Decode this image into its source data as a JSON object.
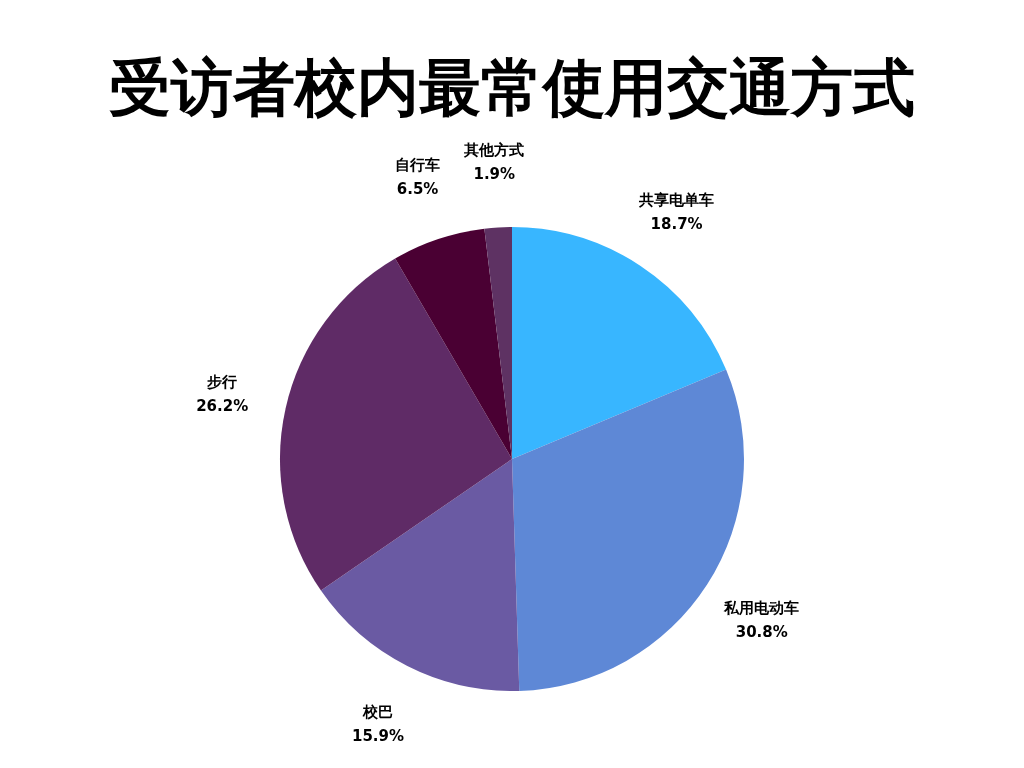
{
  "chart_data": {
    "type": "pie",
    "title": "受访者校内最常使用交通方式",
    "categories": [
      "共享电单车",
      "私用电动车",
      "校巴",
      "步行",
      "自行车",
      "其他方式"
    ],
    "values": [
      18.7,
      30.8,
      15.9,
      26.2,
      6.5,
      1.9
    ],
    "value_labels": [
      "18.7%",
      "30.8%",
      "15.9%",
      "26.2%",
      "6.5%",
      "1.9%"
    ],
    "colors": [
      "#38b6ff",
      "#5e88d6",
      "#6a5aa3",
      "#5f2b66",
      "#4a0033",
      "#5e3263"
    ],
    "legend": false
  }
}
